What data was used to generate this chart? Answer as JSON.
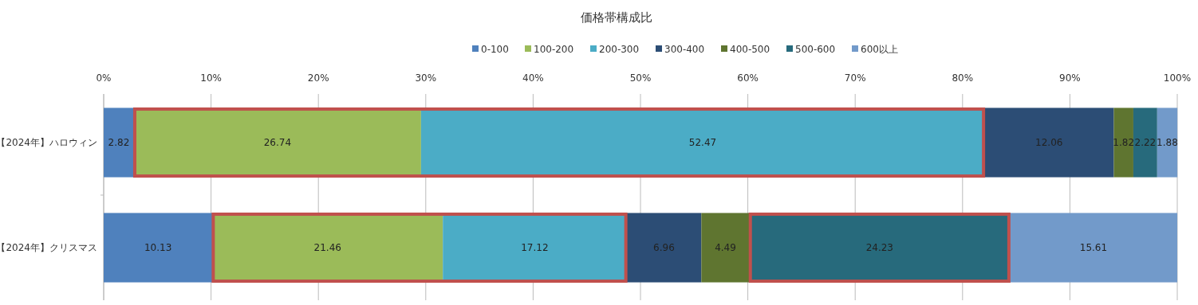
{
  "chart_data": {
    "type": "bar",
    "orientation": "horizontal",
    "stacked": true,
    "title": "価格帯構成比",
    "categories": [
      "【2024年】ハロウィン",
      "【2024年】クリスマス"
    ],
    "series": [
      {
        "name": "0-100",
        "color": "#4f81bd",
        "values": [
          2.82,
          10.13
        ]
      },
      {
        "name": "100-200",
        "color": "#9bbb59",
        "values": [
          26.74,
          21.46
        ]
      },
      {
        "name": "200-300",
        "color": "#4bacc6",
        "values": [
          52.47,
          17.12
        ]
      },
      {
        "name": "300-400",
        "color": "#2c4d75",
        "values": [
          12.06,
          6.96
        ]
      },
      {
        "name": "400-500",
        "color": "#5f7530",
        "values": [
          1.82,
          4.49
        ]
      },
      {
        "name": "500-600",
        "color": "#276a7c",
        "values": [
          2.22,
          24.23
        ]
      },
      {
        "name": "600以上",
        "color": "#729aca",
        "values": [
          1.88,
          15.61
        ]
      }
    ],
    "xlim": [
      0,
      100
    ],
    "xticks": [
      {
        "value": 0,
        "label": "0%"
      },
      {
        "value": 10,
        "label": "10%"
      },
      {
        "value": 20,
        "label": "20%"
      },
      {
        "value": 30,
        "label": "30%"
      },
      {
        "value": 40,
        "label": "40%"
      },
      {
        "value": 50,
        "label": "50%"
      },
      {
        "value": 60,
        "label": "60%"
      },
      {
        "value": 70,
        "label": "70%"
      },
      {
        "value": 80,
        "label": "80%"
      },
      {
        "value": 90,
        "label": "90%"
      },
      {
        "value": 100,
        "label": "100%"
      }
    ],
    "grid": "x",
    "legend": "top",
    "data_labels": true
  }
}
